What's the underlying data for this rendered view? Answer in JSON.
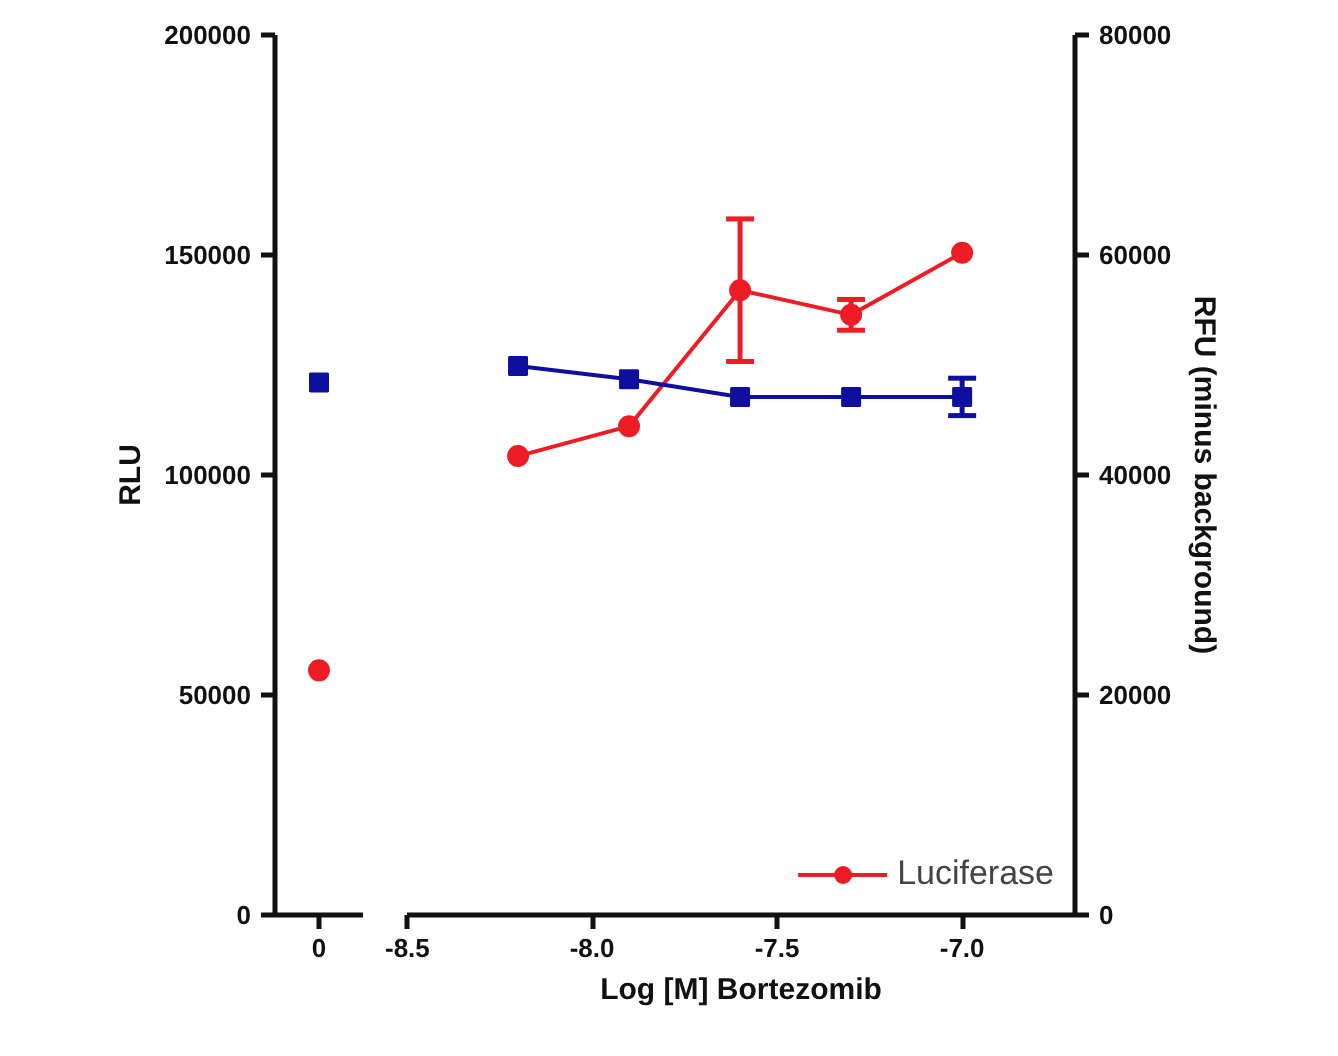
{
  "chart_data": [
    {
      "type": "line",
      "categories": [
        "0"
      ],
      "ylim": [
        0,
        200000
      ],
      "yticks": [
        0,
        50000,
        100000,
        150000,
        200000
      ],
      "ylabel": "RLU",
      "y2lim": [
        0,
        80000
      ],
      "grid": false,
      "series": [
        {
          "color": "#ee1c25",
          "marker": "circle",
          "values": [
            55600
          ]
        },
        {
          "color": "#0f0f9f",
          "marker": "square",
          "axis": "y2",
          "values": [
            48400
          ]
        }
      ]
    },
    {
      "type": "line",
      "xlim": [
        -8.5,
        -6.695
      ],
      "xticks": [
        {
          "value": -8.5,
          "label": "-8.5"
        },
        {
          "value": -8.0,
          "label": "-8.0"
        },
        {
          "value": -7.5,
          "label": "-7.5"
        },
        {
          "value": -7.0,
          "label": "-7.0"
        }
      ],
      "ylim": [
        0,
        200000
      ],
      "y2lim": [
        0,
        80000
      ],
      "y2ticks": [
        0,
        20000,
        40000,
        60000,
        80000
      ],
      "xlabel": "Log [M] Bortezomib",
      "y2label": "RFU (minus background)",
      "legend": "bottom right",
      "grid": false,
      "series": [
        {
          "name": "Luciferase",
          "color": "#ee1c25",
          "marker": "circle",
          "x": [
            -8.2,
            -7.9,
            -7.6,
            -7.3,
            -7.0
          ],
          "values": [
            104300,
            111100,
            142000,
            136400,
            150500
          ],
          "errors": [
            null,
            null,
            16200,
            3500,
            null
          ]
        },
        {
          "color": "#0f0f9f",
          "marker": "square",
          "axis": "y2",
          "x": [
            -8.2,
            -7.9,
            -7.6,
            -7.3,
            -7.0
          ],
          "values": [
            49900,
            48700,
            47100,
            47100,
            47100
          ],
          "errors": [
            null,
            null,
            null,
            null,
            1700
          ]
        }
      ]
    }
  ]
}
